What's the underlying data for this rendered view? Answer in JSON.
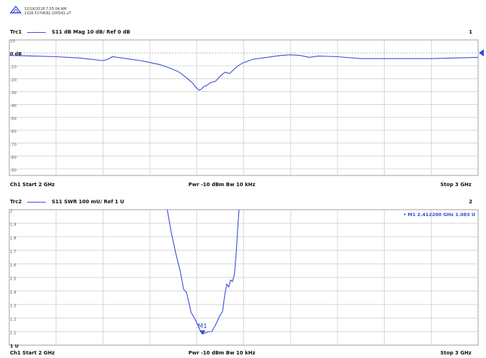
{
  "header": {
    "timestamp": "12/18/2018 7:55:04 AM",
    "instrument_id": "1328.5170K92-100541-uT"
  },
  "colors": {
    "trace": "#3a4bd6",
    "grid": "#c8c8c8",
    "frame": "#888888",
    "marker": "#2f4bd8"
  },
  "chart_data": [
    {
      "type": "line",
      "trace_label": "Trc1",
      "parameter": "S11  dB Mag  10 dB/ Ref 0 dB",
      "channel_number": "1",
      "ref_label": "0 dB",
      "y_tick_labels": [
        "10",
        "0 dB",
        "-10",
        "-20",
        "-30",
        "-40",
        "-50",
        "-60",
        "-70",
        "-80",
        "-90"
      ],
      "ylim": [
        -95,
        10
      ],
      "xlim": [
        2.0,
        3.0
      ],
      "grid": true,
      "footer": {
        "left": "Ch1  Start  2 GHz",
        "center": "Pwr  -10 dBm  Bw  10 kHz",
        "right": "Stop  3 GHz"
      },
      "series": [
        {
          "x": [
            2.0,
            2.05,
            2.1,
            2.15,
            2.2,
            2.21,
            2.22,
            2.25,
            2.28,
            2.3,
            2.32,
            2.34,
            2.36,
            2.37,
            2.38,
            2.39,
            2.4,
            2.405,
            2.41,
            2.415,
            2.42,
            2.43,
            2.44,
            2.45,
            2.46,
            2.47,
            2.48,
            2.49,
            2.5,
            2.52,
            2.55,
            2.58,
            2.6,
            2.62,
            2.64,
            2.66,
            2.7,
            2.75,
            2.8,
            2.85,
            2.9,
            2.95,
            3.0
          ],
          "y": [
            -2,
            -2.5,
            -3,
            -4,
            -6,
            -5,
            -3,
            -4.5,
            -6,
            -7.5,
            -9,
            -11.5,
            -14.5,
            -17,
            -20,
            -23,
            -27.5,
            -29,
            -28,
            -26,
            -25.5,
            -23,
            -22,
            -18,
            -15,
            -16,
            -12.5,
            -9.5,
            -7.5,
            -5,
            -3.5,
            -2,
            -1.5,
            -2,
            -3.5,
            -2.5,
            -3,
            -4.5,
            -4.5,
            -4.5,
            -4.5,
            -4,
            -3.5
          ]
        }
      ]
    },
    {
      "type": "line",
      "trace_label": "Trc2",
      "parameter": "S11  SWR  100 mU/ Ref 1 U",
      "channel_number": "2",
      "ref_label": "1 U",
      "y_tick_labels": [
        "2",
        "1.9",
        "1.8",
        "1.7",
        "1.6",
        "1.5",
        "1.4",
        "1.3",
        "1.2",
        "1.1",
        "1 U"
      ],
      "ylim": [
        1.0,
        2.0
      ],
      "xlim": [
        2.0,
        3.0
      ],
      "grid": true,
      "footer": {
        "left": "Ch1  Start  2 GHz",
        "center": "Pwr  -10 dBm  Bw  10 kHz",
        "right": "Stop  3 GHz"
      },
      "marker": {
        "label": "M1",
        "readout": "• M1  2.412200  GHz  1.083  U",
        "x": 2.4122,
        "y": 1.083
      },
      "series": [
        {
          "x": [
            2.337,
            2.345,
            2.355,
            2.365,
            2.372,
            2.378,
            2.382,
            2.388,
            2.395,
            2.402,
            2.408,
            2.412,
            2.418,
            2.425,
            2.432,
            2.44,
            2.448,
            2.455,
            2.46,
            2.464,
            2.468,
            2.472,
            2.476,
            2.48,
            2.484,
            2.487,
            2.49
          ],
          "y": [
            2.0,
            1.84,
            1.68,
            1.54,
            1.41,
            1.39,
            1.33,
            1.24,
            1.2,
            1.15,
            1.1,
            1.083,
            1.09,
            1.1,
            1.1,
            1.15,
            1.21,
            1.25,
            1.38,
            1.45,
            1.43,
            1.48,
            1.47,
            1.52,
            1.68,
            1.85,
            2.0
          ]
        }
      ]
    }
  ]
}
